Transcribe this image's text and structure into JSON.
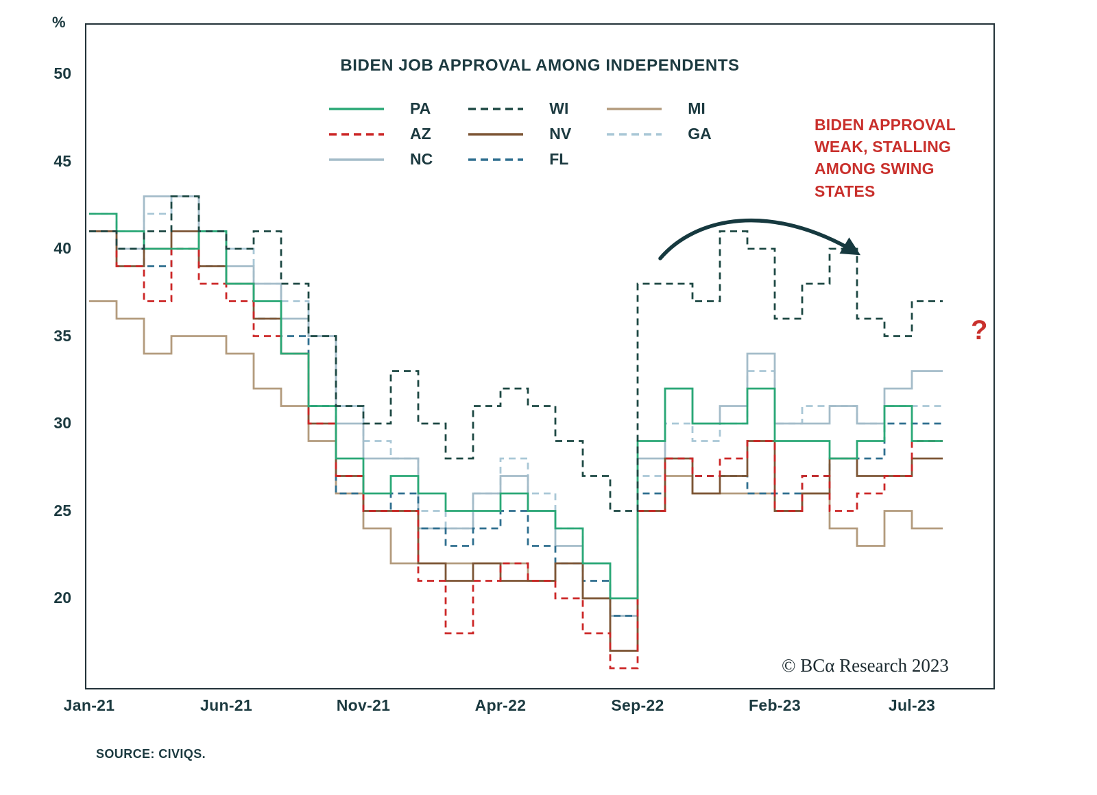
{
  "page": {
    "source_note": "SOURCE: CIVIQS.",
    "copyright": "© BCα Research 2023"
  },
  "chart_data": {
    "type": "line",
    "step": true,
    "title": "BIDEN JOB APPROVAL AMONG INDEPENDENTS",
    "ylabel_symbol": "%",
    "annotation": "BIDEN APPROVAL WEAK, STALLING AMONG SWING STATES",
    "question_mark": "?",
    "grid": false,
    "legend_position": "top-center",
    "ylim": [
      14.5,
      53
    ],
    "y_ticks": [
      50,
      45,
      40,
      35,
      30,
      25,
      20
    ],
    "x_tick_indices": [
      0,
      5,
      10,
      15,
      20,
      25,
      30
    ],
    "x_tick_labels": [
      "Jan-21",
      "Jun-21",
      "Nov-21",
      "Apr-22",
      "Sep-22",
      "Feb-23",
      "Jul-23"
    ],
    "x": [
      "Jan-21",
      "Feb-21",
      "Mar-21",
      "Apr-21",
      "May-21",
      "Jun-21",
      "Jul-21",
      "Aug-21",
      "Sep-21",
      "Oct-21",
      "Nov-21",
      "Dec-21",
      "Jan-22",
      "Feb-22",
      "Mar-22",
      "Apr-22",
      "May-22",
      "Jun-22",
      "Jul-22",
      "Aug-22",
      "Sep-22",
      "Oct-22",
      "Nov-22",
      "Dec-22",
      "Jan-23",
      "Feb-23",
      "Mar-23",
      "Apr-23",
      "May-23",
      "Jun-23",
      "Jul-23"
    ],
    "arrow_color": "#16393f",
    "border_color": "#223238",
    "series": [
      {
        "name": "PA",
        "color": "#2aa876",
        "dash": false,
        "values": [
          42,
          41,
          40,
          40,
          41,
          38,
          37,
          34,
          31,
          28,
          26,
          27,
          26,
          25,
          25,
          26,
          25,
          24,
          22,
          20,
          29,
          32,
          30,
          30,
          32,
          29,
          29,
          28,
          29,
          31,
          29
        ]
      },
      {
        "name": "AZ",
        "color": "#cc2727",
        "dash": true,
        "values": [
          41,
          39,
          37,
          40,
          38,
          37,
          35,
          34,
          30,
          27,
          25,
          25,
          21,
          18,
          21,
          22,
          21,
          20,
          18,
          16,
          25,
          28,
          27,
          28,
          29,
          25,
          27,
          25,
          26,
          27,
          29
        ]
      },
      {
        "name": "NC",
        "color": "#a4bcc9",
        "dash": false,
        "values": [
          41,
          40,
          43,
          43,
          41,
          39,
          38,
          36,
          35,
          30,
          28,
          28,
          24,
          24,
          26,
          27,
          25,
          23,
          22,
          19,
          28,
          32,
          30,
          31,
          34,
          30,
          30,
          31,
          30,
          32,
          33
        ]
      },
      {
        "name": "WI",
        "color": "#1d4843",
        "dash": true,
        "values": [
          41,
          40,
          41,
          43,
          41,
          40,
          41,
          38,
          35,
          31,
          30,
          33,
          30,
          28,
          31,
          32,
          31,
          29,
          27,
          25,
          38,
          38,
          37,
          41,
          40,
          36,
          38,
          40,
          36,
          35,
          37
        ]
      },
      {
        "name": "NV",
        "color": "#7d5636",
        "dash": false,
        "values": [
          41,
          39,
          40,
          41,
          39,
          38,
          36,
          34,
          30,
          27,
          25,
          25,
          22,
          21,
          22,
          21,
          21,
          22,
          20,
          17,
          25,
          28,
          26,
          27,
          29,
          25,
          26,
          28,
          27,
          27,
          28
        ]
      },
      {
        "name": "FL",
        "color": "#2f6f8f",
        "dash": true,
        "values": [
          41,
          40,
          39,
          40,
          39,
          38,
          36,
          35,
          31,
          26,
          25,
          26,
          24,
          23,
          24,
          25,
          23,
          22,
          21,
          19,
          26,
          28,
          27,
          27,
          26,
          26,
          27,
          28,
          28,
          30,
          30
        ]
      },
      {
        "name": "MI",
        "color": "#b39b7d",
        "dash": false,
        "values": [
          37,
          36,
          34,
          35,
          35,
          34,
          32,
          31,
          29,
          26,
          24,
          22,
          22,
          22,
          22,
          22,
          21,
          22,
          20,
          17,
          25,
          27,
          26,
          26,
          26,
          25,
          26,
          24,
          23,
          25,
          24
        ]
      },
      {
        "name": "GA",
        "color": "#a9c7d6",
        "dash": true,
        "values": [
          42,
          41,
          42,
          43,
          41,
          40,
          38,
          37,
          35,
          31,
          29,
          28,
          25,
          24,
          26,
          28,
          26,
          24,
          22,
          19,
          27,
          30,
          29,
          30,
          33,
          30,
          31,
          31,
          30,
          31,
          31
        ]
      }
    ]
  }
}
